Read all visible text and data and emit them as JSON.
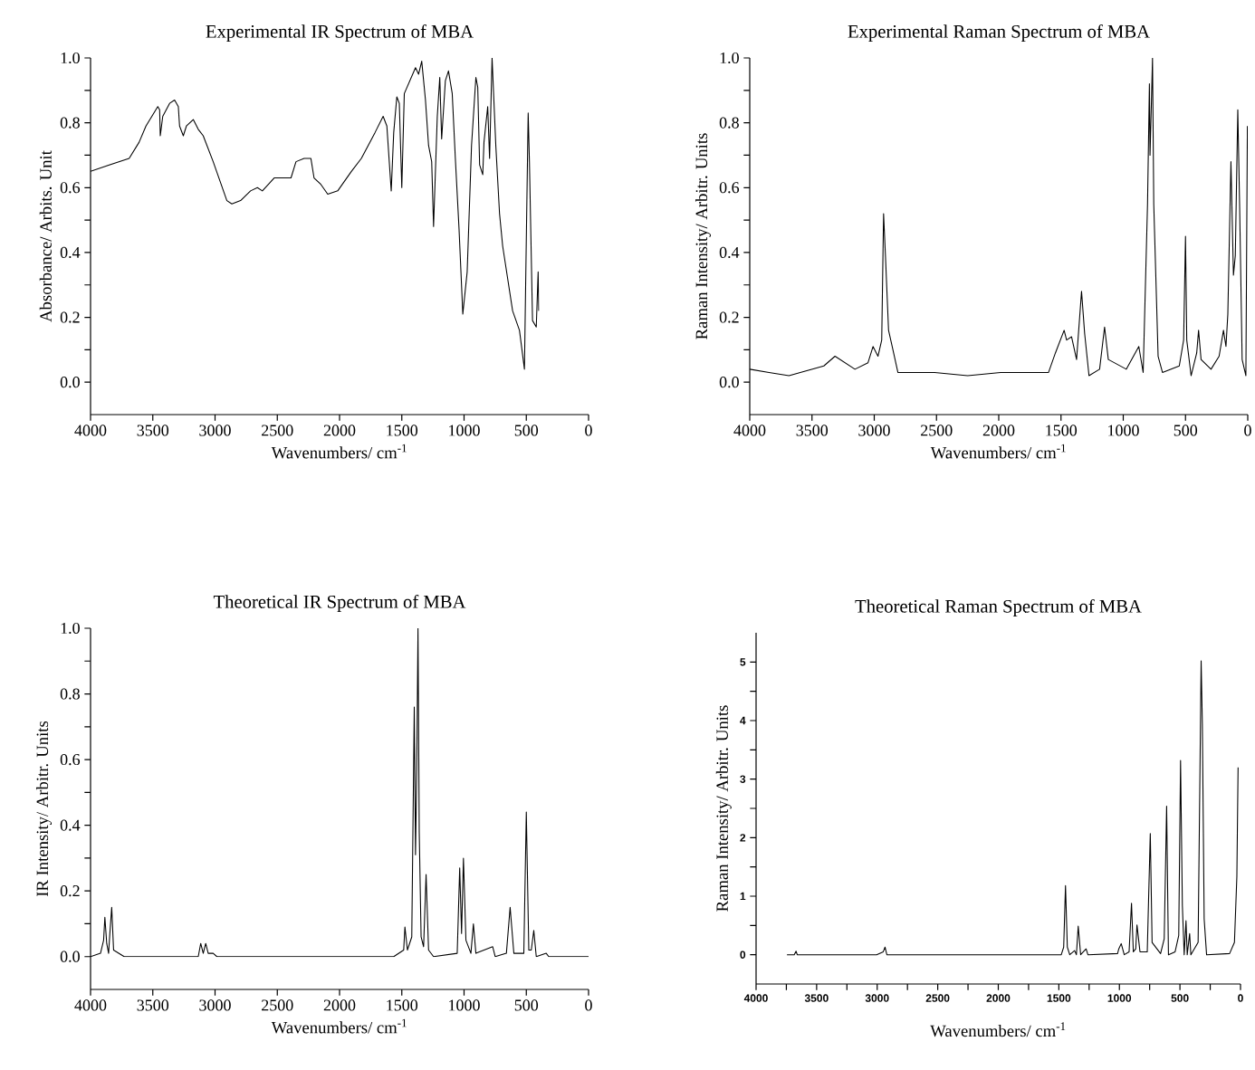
{
  "chart_data": [
    {
      "type": "line",
      "title": "Experimental IR Spectrum of MBA",
      "xlabel": "Wavenumbers/ cm$^{-1}$",
      "ylabel": "Absorbance/ Arbits. Unit",
      "xlim": [
        4000,
        0
      ],
      "ylim": [
        -0.1,
        1.0
      ],
      "xticks": [
        4000,
        3500,
        3000,
        2500,
        2000,
        1500,
        1000,
        500,
        0
      ],
      "yticks": [
        {
          "value": 0,
          "label": "0.0"
        },
        {
          "value": 0.1,
          "label": null
        },
        {
          "value": 0.2,
          "label": "0.2"
        },
        {
          "value": 0.3,
          "label": null
        },
        {
          "value": 0.4,
          "label": "0.4"
        },
        {
          "value": 0.5,
          "label": null
        },
        {
          "value": 0.6,
          "label": "0.6"
        },
        {
          "value": 0.7,
          "label": null
        },
        {
          "value": 0.8,
          "label": "0.8"
        },
        {
          "value": 0.9,
          "label": null
        },
        {
          "value": 1.0,
          "label": "1.0"
        }
      ],
      "series": [
        {
          "color": "#000000",
          "x": [
            4000,
            3850,
            3690,
            3610,
            3555,
            3460,
            3445,
            3440,
            3420,
            3365,
            3325,
            3295,
            3285,
            3255,
            3230,
            3175,
            3135,
            3095,
            3015,
            2960,
            2905,
            2865,
            2795,
            2715,
            2660,
            2620,
            2525,
            2475,
            2390,
            2350,
            2285,
            2230,
            2205,
            2150,
            2095,
            2015,
            1905,
            1825,
            1715,
            1650,
            1620,
            1585,
            1565,
            1540,
            1520,
            1500,
            1480,
            1390,
            1365,
            1340,
            1310,
            1285,
            1260,
            1245,
            1215,
            1195,
            1180,
            1150,
            1125,
            1095,
            1070,
            1040,
            1010,
            975,
            940,
            905,
            890,
            875,
            850,
            840,
            810,
            795,
            775,
            745,
            715,
            690,
            610,
            555,
            515,
            500,
            485,
            475,
            450,
            420,
            405,
            400
          ],
          "values": [
            0.65,
            0.67,
            0.69,
            0.74,
            0.79,
            0.85,
            0.84,
            0.76,
            0.82,
            0.86,
            0.87,
            0.85,
            0.79,
            0.76,
            0.79,
            0.81,
            0.78,
            0.76,
            0.68,
            0.62,
            0.56,
            0.55,
            0.56,
            0.59,
            0.6,
            0.59,
            0.63,
            0.63,
            0.63,
            0.68,
            0.69,
            0.69,
            0.63,
            0.61,
            0.58,
            0.59,
            0.65,
            0.69,
            0.77,
            0.82,
            0.79,
            0.59,
            0.77,
            0.88,
            0.86,
            0.6,
            0.89,
            0.97,
            0.95,
            0.99,
            0.87,
            0.73,
            0.68,
            0.48,
            0.82,
            0.94,
            0.75,
            0.93,
            0.96,
            0.89,
            0.69,
            0.47,
            0.21,
            0.34,
            0.73,
            0.94,
            0.91,
            0.67,
            0.64,
            0.74,
            0.85,
            0.69,
            1.0,
            0.73,
            0.52,
            0.42,
            0.22,
            0.16,
            0.04,
            0.44,
            0.83,
            0.68,
            0.19,
            0.17,
            0.34,
            0.22
          ]
        }
      ]
    },
    {
      "type": "line",
      "title": "Experimental Raman Spectrum of MBA",
      "xlabel": "Wavenumbers/ cm$^{-1}$",
      "ylabel": "Raman Intensity/ Arbitr. Units",
      "xlim": [
        4000,
        0
      ],
      "ylim": [
        -0.1,
        1.0
      ],
      "xticks": [
        4000,
        3500,
        3000,
        2500,
        2000,
        1500,
        1000,
        500,
        0
      ],
      "yticks": [
        {
          "value": 0,
          "label": "0.0"
        },
        {
          "value": 0.1,
          "label": null
        },
        {
          "value": 0.2,
          "label": "0.2"
        },
        {
          "value": 0.3,
          "label": null
        },
        {
          "value": 0.4,
          "label": "0.4"
        },
        {
          "value": 0.5,
          "label": null
        },
        {
          "value": 0.6,
          "label": "0.6"
        },
        {
          "value": 0.7,
          "label": null
        },
        {
          "value": 0.8,
          "label": "0.8"
        },
        {
          "value": 0.9,
          "label": null
        },
        {
          "value": 1.0,
          "label": "1.0"
        }
      ],
      "series": [
        {
          "color": "#000000",
          "x": [
            4000,
            3845,
            3685,
            3405,
            3315,
            3155,
            3050,
            3010,
            2970,
            2940,
            2925,
            2910,
            2885,
            2850,
            2810,
            2515,
            2250,
            1985,
            1600,
            1545,
            1475,
            1455,
            1415,
            1375,
            1335,
            1310,
            1275,
            1190,
            1150,
            1120,
            975,
            875,
            840,
            805,
            790,
            785,
            770,
            765,
            755,
            720,
            685,
            550,
            515,
            500,
            490,
            455,
            410,
            395,
            375,
            295,
            230,
            195,
            175,
            160,
            135,
            115,
            100,
            80,
            65,
            45,
            15,
            3
          ],
          "values": [
            0.04,
            0.03,
            0.02,
            0.05,
            0.08,
            0.04,
            0.06,
            0.11,
            0.08,
            0.13,
            0.52,
            0.39,
            0.16,
            0.1,
            0.03,
            0.03,
            0.02,
            0.03,
            0.03,
            0.09,
            0.16,
            0.13,
            0.14,
            0.07,
            0.28,
            0.15,
            0.02,
            0.04,
            0.17,
            0.07,
            0.04,
            0.11,
            0.03,
            0.55,
            0.92,
            0.7,
            0.92,
            1.0,
            0.55,
            0.08,
            0.03,
            0.05,
            0.13,
            0.45,
            0.13,
            0.02,
            0.09,
            0.16,
            0.07,
            0.04,
            0.08,
            0.16,
            0.11,
            0.21,
            0.68,
            0.33,
            0.39,
            0.84,
            0.54,
            0.07,
            0.02,
            0.79
          ]
        }
      ]
    },
    {
      "type": "line",
      "title": "Theoretical IR Spectrum of MBA",
      "xlabel": "Wavenumbers/ cm$^{-1}$",
      "ylabel": "IR Intensity/ Arbitr. Units",
      "xlim": [
        4000,
        0
      ],
      "ylim": [
        -0.1,
        1.0
      ],
      "xticks": [
        4000,
        3500,
        3000,
        2500,
        2000,
        1500,
        1000,
        500,
        0
      ],
      "yticks": [
        {
          "value": 0,
          "label": "0.0"
        },
        {
          "value": 0.1,
          "label": null
        },
        {
          "value": 0.2,
          "label": "0.2"
        },
        {
          "value": 0.3,
          "label": null
        },
        {
          "value": 0.4,
          "label": "0.4"
        },
        {
          "value": 0.5,
          "label": null
        },
        {
          "value": 0.6,
          "label": "0.6"
        },
        {
          "value": 0.7,
          "label": null
        },
        {
          "value": 0.8,
          "label": "0.8"
        },
        {
          "value": 0.9,
          "label": null
        },
        {
          "value": 1.0,
          "label": "1.0"
        }
      ],
      "series": [
        {
          "color": "#000000",
          "x": [
            4000,
            3920,
            3895,
            3885,
            3870,
            3855,
            3845,
            3830,
            3815,
            3730,
            3135,
            3115,
            3095,
            3075,
            3055,
            3015,
            2985,
            1565,
            1485,
            1475,
            1455,
            1420,
            1400,
            1390,
            1380,
            1370,
            1360,
            1345,
            1325,
            1305,
            1285,
            1245,
            1055,
            1035,
            1020,
            1005,
            985,
            945,
            925,
            905,
            770,
            750,
            660,
            630,
            600,
            520,
            500,
            480,
            460,
            440,
            420,
            340,
            320,
            0
          ],
          "values": [
            0,
            0.01,
            0.05,
            0.12,
            0.04,
            0.01,
            0.07,
            0.15,
            0.02,
            0,
            0,
            0.04,
            0.01,
            0.04,
            0.01,
            0.01,
            0,
            0,
            0.02,
            0.09,
            0.02,
            0.06,
            0.76,
            0.31,
            0.57,
            1.0,
            0.38,
            0.06,
            0.03,
            0.25,
            0.02,
            0,
            0.01,
            0.27,
            0.07,
            0.3,
            0.05,
            0.01,
            0.1,
            0.01,
            0.03,
            0,
            0.01,
            0.15,
            0.01,
            0.01,
            0.44,
            0.02,
            0.02,
            0.08,
            0,
            0.01,
            0,
            0
          ]
        }
      ]
    },
    {
      "type": "line",
      "title": "Theoretical Raman Spectrum of MBA",
      "xlabel": "Wavenumbers/ cm$^{-1}$",
      "ylabel": "Raman Intensity/ Arbitr. Units",
      "xlim": [
        4000,
        0
      ],
      "ylim": [
        -0.5,
        5.5
      ],
      "xticks": [
        4000,
        {
          "value": 3750,
          "label": null
        },
        3500,
        {
          "value": 3250,
          "label": null
        },
        3000,
        {
          "value": 2750,
          "label": null
        },
        2500,
        {
          "value": 2250,
          "label": null
        },
        2000,
        {
          "value": 1750,
          "label": null
        },
        1500,
        {
          "value": 1250,
          "label": null
        },
        1000,
        {
          "value": 750,
          "label": null
        },
        500,
        {
          "value": 250,
          "label": null
        },
        0
      ],
      "yticks": [
        0,
        {
          "value": 0.5,
          "label": null
        },
        1,
        {
          "value": 1.5,
          "label": null
        },
        2,
        {
          "value": 2.5,
          "label": null
        },
        3,
        {
          "value": 3.5,
          "label": null
        },
        4,
        {
          "value": 4.5,
          "label": null
        },
        5
      ],
      "series": [
        {
          "color": "#000000",
          "x": [
            3745,
            3685,
            3670,
            3660,
            3005,
            2950,
            2935,
            2920,
            1480,
            1460,
            1445,
            1430,
            1410,
            1370,
            1355,
            1340,
            1320,
            1275,
            1260,
            1015,
            1005,
            985,
            960,
            920,
            900,
            885,
            865,
            855,
            830,
            770,
            745,
            730,
            660,
            630,
            610,
            595,
            540,
            510,
            495,
            480,
            465,
            450,
            440,
            420,
            410,
            350,
            325,
            315,
            300,
            280,
            90,
            50,
            30,
            20
          ],
          "values": [
            0,
            0,
            0.06,
            0,
            0,
            0.05,
            0.13,
            0,
            0,
            0.13,
            1.18,
            0.13,
            0,
            0.07,
            0,
            0.49,
            0,
            0.1,
            0,
            0.02,
            0.1,
            0.19,
            0,
            0.05,
            0.88,
            0.05,
            0.1,
            0.51,
            0.05,
            0.05,
            2.07,
            0.21,
            0.02,
            0.27,
            2.54,
            0,
            0.05,
            0.33,
            3.32,
            0.84,
            0,
            0.58,
            0,
            0.36,
            0,
            0.21,
            5.02,
            3.94,
            0.61,
            0,
            0.02,
            0.21,
            1.34,
            3.2
          ]
        }
      ]
    }
  ]
}
